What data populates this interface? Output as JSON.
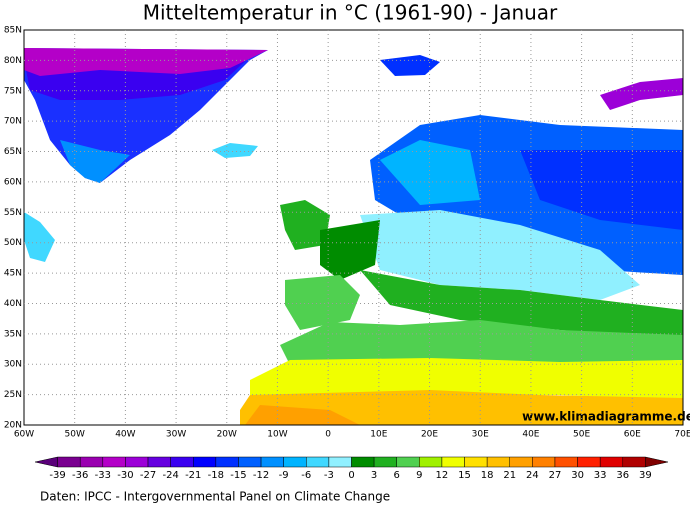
{
  "title": "Mitteltemperatur in °C (1961-90) - Januar",
  "map": {
    "lat_labels": [
      "85N",
      "80N",
      "75N",
      "70N",
      "65N",
      "60N",
      "55N",
      "50N",
      "45N",
      "40N",
      "35N",
      "30N",
      "25N",
      "20N"
    ],
    "lon_labels": [
      "60W",
      "50W",
      "40W",
      "30W",
      "20W",
      "10W",
      "0",
      "10E",
      "20E",
      "30E",
      "40E",
      "50E",
      "60E",
      "70E"
    ],
    "watermark": "www.klimadiagramme.de"
  },
  "colorbar": {
    "ticks": [
      -39,
      -36,
      -33,
      -30,
      -27,
      -24,
      -21,
      -18,
      -15,
      -12,
      -9,
      -6,
      -3,
      0,
      3,
      6,
      9,
      12,
      15,
      18,
      21,
      24,
      27,
      30,
      33,
      36,
      39
    ],
    "colors": [
      "#5a007a",
      "#7a0090",
      "#9a00b0",
      "#b400c8",
      "#9c00d8",
      "#6600e0",
      "#3a00f0",
      "#0000ff",
      "#0030ff",
      "#0060ff",
      "#0090ff",
      "#00b4ff",
      "#40d8ff",
      "#90f0ff",
      "#008c00",
      "#20b020",
      "#50d050",
      "#a0f000",
      "#f0ff00",
      "#ffe000",
      "#ffc000",
      "#ffa000",
      "#ff8000",
      "#ff5000",
      "#ff2000",
      "#e00000",
      "#b00000",
      "#800000"
    ]
  },
  "source": "Daten: IPCC - Intergovernmental Panel on Climate Change"
}
